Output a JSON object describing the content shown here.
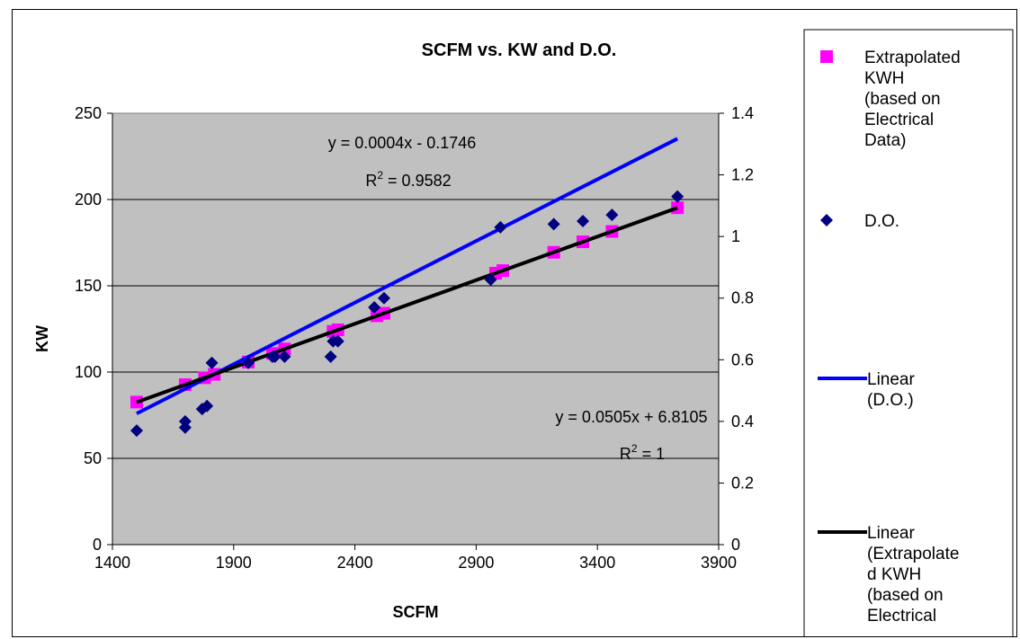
{
  "chart_data": {
    "type": "scatter",
    "title": "SCFM vs. KW and D.O.",
    "xlabel": "SCFM",
    "ylabel": "KW",
    "xlim": [
      1400,
      3900
    ],
    "ylim": [
      0,
      250
    ],
    "y2lim": [
      0,
      1.4
    ],
    "x_ticks": [
      "1400",
      "1900",
      "2400",
      "2900",
      "3400",
      "3900"
    ],
    "y_ticks": [
      "0",
      "50",
      "100",
      "150",
      "200",
      "250"
    ],
    "y2_ticks": [
      "0",
      "0.2",
      "0.4",
      "0.6",
      "0.8",
      "1",
      "1.2",
      "1.4"
    ],
    "grid": "horizontal major",
    "plot_background": "#c0c0c0",
    "legend_position": "right",
    "series": [
      {
        "name": "Extrapolated KWH (based on Electrical Data)",
        "axis": "primary",
        "marker": "square",
        "color": "#ff00ff",
        "x": [
          1500,
          1700,
          1780,
          1820,
          1960,
          2060,
          2110,
          2310,
          2330,
          2490,
          2520,
          2980,
          3010,
          3220,
          3340,
          3460,
          3730
        ],
        "y": [
          82.6,
          92.7,
          96.7,
          98.7,
          105.8,
          110.8,
          113.4,
          123.5,
          124.5,
          132.6,
          134.1,
          157.3,
          158.8,
          169.4,
          175.5,
          181.5,
          195.2
        ]
      },
      {
        "name": "D.O.",
        "axis": "secondary",
        "marker": "diamond",
        "color": "#000080",
        "x": [
          1500,
          1700,
          1700,
          1770,
          1790,
          1810,
          1960,
          2060,
          2070,
          2110,
          2300,
          2310,
          2330,
          2480,
          2520,
          2960,
          3000,
          3220,
          3340,
          3460,
          3730
        ],
        "y": [
          0.37,
          0.38,
          0.4,
          0.44,
          0.45,
          0.59,
          0.59,
          0.61,
          0.61,
          0.61,
          0.61,
          0.66,
          0.66,
          0.77,
          0.8,
          0.86,
          1.03,
          1.04,
          1.05,
          1.07,
          1.13
        ]
      }
    ],
    "trendlines": [
      {
        "name": "Linear (D.O.)",
        "axis": "secondary",
        "color": "#0000ff",
        "slope": 0.0004,
        "intercept": -0.1746,
        "x_range": [
          1500,
          3730
        ]
      },
      {
        "name": "Linear (Extrapolated KWH (based on Electrical Data))",
        "axis": "primary",
        "color": "#000000",
        "slope": 0.0505,
        "intercept": 6.8105,
        "x_range": [
          1500,
          3730
        ]
      }
    ],
    "annotations": [
      {
        "equation": "y = 0.0004x - 0.1746",
        "r2_label": "R",
        "r2_sup": "2",
        "r2_value": " = 0.9582"
      },
      {
        "equation": "y = 0.0505x + 6.8105",
        "r2_label": "R",
        "r2_sup": "2",
        "r2_value": " = 1"
      }
    ],
    "legend": [
      {
        "label_lines": [
          "Extrapolated",
          "KWH",
          "(based on",
          "Electrical",
          "Data)"
        ],
        "kind": "square",
        "color": "#ff00ff"
      },
      {
        "label_lines": [
          "D.O."
        ],
        "kind": "diamond",
        "color": "#000080"
      },
      {
        "label_lines": [
          "Linear",
          "(D.O.)"
        ],
        "kind": "line",
        "color": "#0000ff"
      },
      {
        "label_lines": [
          "Linear",
          "(Extrapolate",
          "d KWH",
          "(based on",
          "Electrical"
        ],
        "kind": "line",
        "color": "#000000"
      }
    ]
  }
}
